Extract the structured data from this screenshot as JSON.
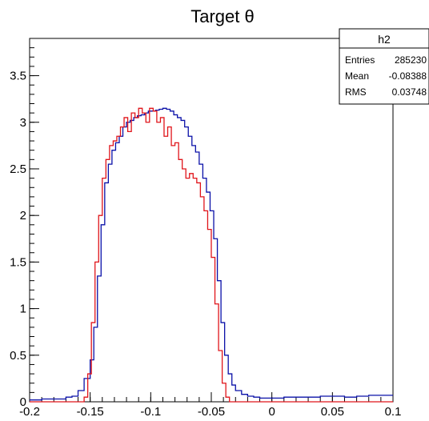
{
  "chart_data": {
    "type": "line",
    "title": "Target θ",
    "xlabel": "",
    "ylabel": "",
    "xlim": [
      -0.2,
      0.1
    ],
    "ylim": [
      0,
      3.9
    ],
    "x_ticks": [
      -0.2,
      -0.15,
      -0.1,
      -0.05,
      0,
      0.05,
      0.1
    ],
    "x_tick_labels": [
      "-0.2",
      "-0.15",
      "-0.1",
      "-0.05",
      "0",
      "0.05",
      "0.1"
    ],
    "y_ticks": [
      0,
      0.5,
      1,
      1.5,
      2,
      2.5,
      3,
      3.5
    ],
    "y_tick_labels": [
      "0",
      "0.5",
      "1",
      "1.5",
      "2",
      "2.5",
      "3",
      "3.5"
    ],
    "grid": false,
    "stats_box": {
      "name": "h2",
      "rows": [
        {
          "label": "Entries",
          "value": "285230"
        },
        {
          "label": "Mean",
          "value": "-0.08388"
        },
        {
          "label": "RMS",
          "value": "0.03748"
        }
      ]
    },
    "series": [
      {
        "color": "#0a10a8",
        "x": [
          -0.2,
          -0.19,
          -0.18,
          -0.17,
          -0.165,
          -0.16,
          -0.155,
          -0.15,
          -0.147,
          -0.144,
          -0.141,
          -0.138,
          -0.135,
          -0.132,
          -0.129,
          -0.126,
          -0.123,
          -0.12,
          -0.117,
          -0.114,
          -0.111,
          -0.108,
          -0.105,
          -0.102,
          -0.099,
          -0.096,
          -0.093,
          -0.09,
          -0.087,
          -0.084,
          -0.081,
          -0.078,
          -0.075,
          -0.072,
          -0.069,
          -0.066,
          -0.063,
          -0.06,
          -0.057,
          -0.054,
          -0.051,
          -0.048,
          -0.045,
          -0.042,
          -0.039,
          -0.036,
          -0.033,
          -0.03,
          -0.025,
          -0.02,
          -0.015,
          -0.01,
          -0.005,
          0,
          0.01,
          0.02,
          0.03,
          0.04,
          0.05,
          0.06,
          0.07,
          0.08,
          0.09,
          0.1
        ],
        "y": [
          0.02,
          0.03,
          0.03,
          0.05,
          0.06,
          0.12,
          0.25,
          0.45,
          0.8,
          1.35,
          1.9,
          2.35,
          2.55,
          2.7,
          2.78,
          2.85,
          2.95,
          3.0,
          3.02,
          3.05,
          3.07,
          3.08,
          3.1,
          3.12,
          3.12,
          3.13,
          3.14,
          3.15,
          3.14,
          3.12,
          3.08,
          3.05,
          3.02,
          2.95,
          2.85,
          2.75,
          2.68,
          2.55,
          2.4,
          2.25,
          2.05,
          1.75,
          1.3,
          0.85,
          0.5,
          0.3,
          0.18,
          0.12,
          0.08,
          0.06,
          0.05,
          0.04,
          0.04,
          0.04,
          0.05,
          0.05,
          0.05,
          0.06,
          0.06,
          0.05,
          0.06,
          0.07,
          0.07,
          0.07
        ]
      },
      {
        "color": "#e0141a",
        "x": [
          -0.2,
          -0.16,
          -0.155,
          -0.152,
          -0.149,
          -0.146,
          -0.143,
          -0.14,
          -0.137,
          -0.134,
          -0.131,
          -0.128,
          -0.125,
          -0.122,
          -0.119,
          -0.116,
          -0.113,
          -0.11,
          -0.107,
          -0.104,
          -0.101,
          -0.098,
          -0.095,
          -0.092,
          -0.089,
          -0.086,
          -0.083,
          -0.08,
          -0.077,
          -0.074,
          -0.071,
          -0.068,
          -0.065,
          -0.062,
          -0.059,
          -0.056,
          -0.053,
          -0.05,
          -0.047,
          -0.044,
          -0.041,
          -0.038,
          -0.035,
          -0.03,
          -0.02,
          0,
          0.1
        ],
        "y": [
          0,
          0,
          0.05,
          0.3,
          0.85,
          1.5,
          2.0,
          2.4,
          2.6,
          2.75,
          2.8,
          2.85,
          2.95,
          3.05,
          2.9,
          3.1,
          3.05,
          3.15,
          3.1,
          3.0,
          3.15,
          3.12,
          3.0,
          3.05,
          2.85,
          2.95,
          2.75,
          2.78,
          2.6,
          2.5,
          2.4,
          2.45,
          2.4,
          2.35,
          2.2,
          2.05,
          1.85,
          1.55,
          1.05,
          0.55,
          0.2,
          0.05,
          0.0,
          0,
          0,
          0,
          0
        ]
      }
    ]
  }
}
